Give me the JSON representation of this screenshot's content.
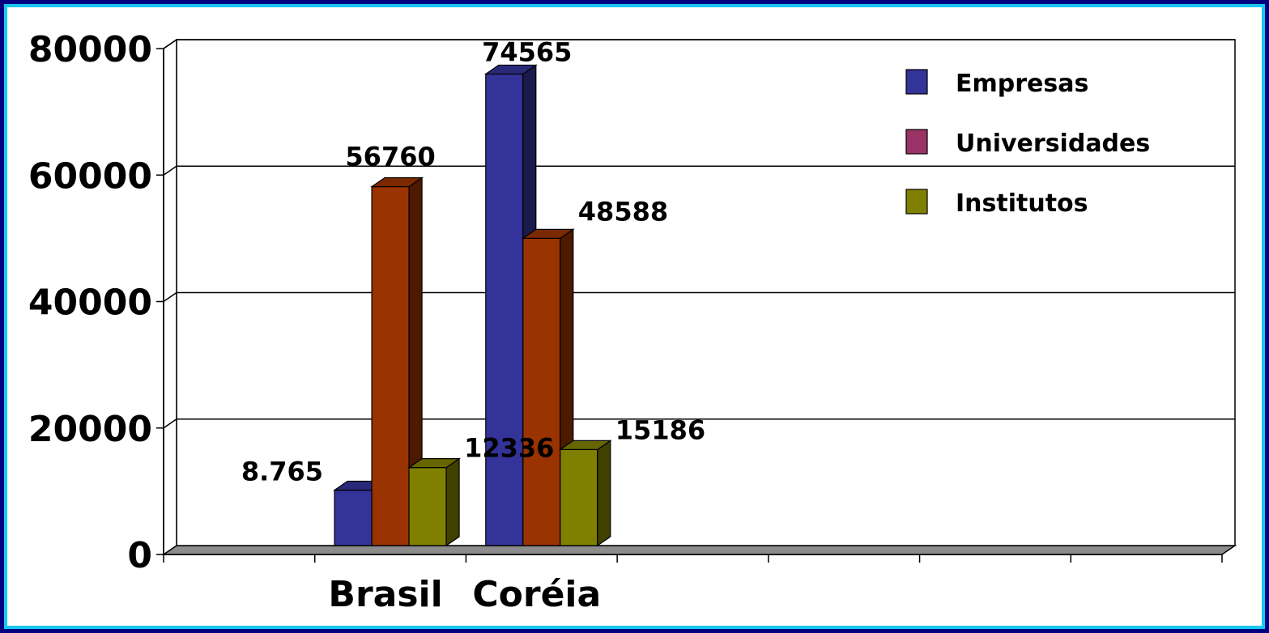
{
  "chart_data": {
    "type": "bar",
    "categories": [
      "Brasil",
      "Coréia"
    ],
    "series": [
      {
        "name": "Empresas",
        "values": [
          8765,
          74565
        ],
        "labels": [
          "8.765",
          "74565"
        ],
        "color": "#333399"
      },
      {
        "name": "Universidades",
        "values": [
          56760,
          48588
        ],
        "labels": [
          "56760",
          "48588"
        ],
        "color": "#993300",
        "legend_color": "#993366"
      },
      {
        "name": "Institutos",
        "values": [
          12336,
          15186
        ],
        "labels": [
          "12336",
          "15186"
        ],
        "color": "#808000"
      }
    ],
    "yticks": [
      "0",
      "20000",
      "40000",
      "60000",
      "80000"
    ],
    "ylim": [
      0,
      80000
    ],
    "grid": true,
    "legend_position": "top-right",
    "background": "#ffffff",
    "frame_color": "#18c8f0"
  }
}
